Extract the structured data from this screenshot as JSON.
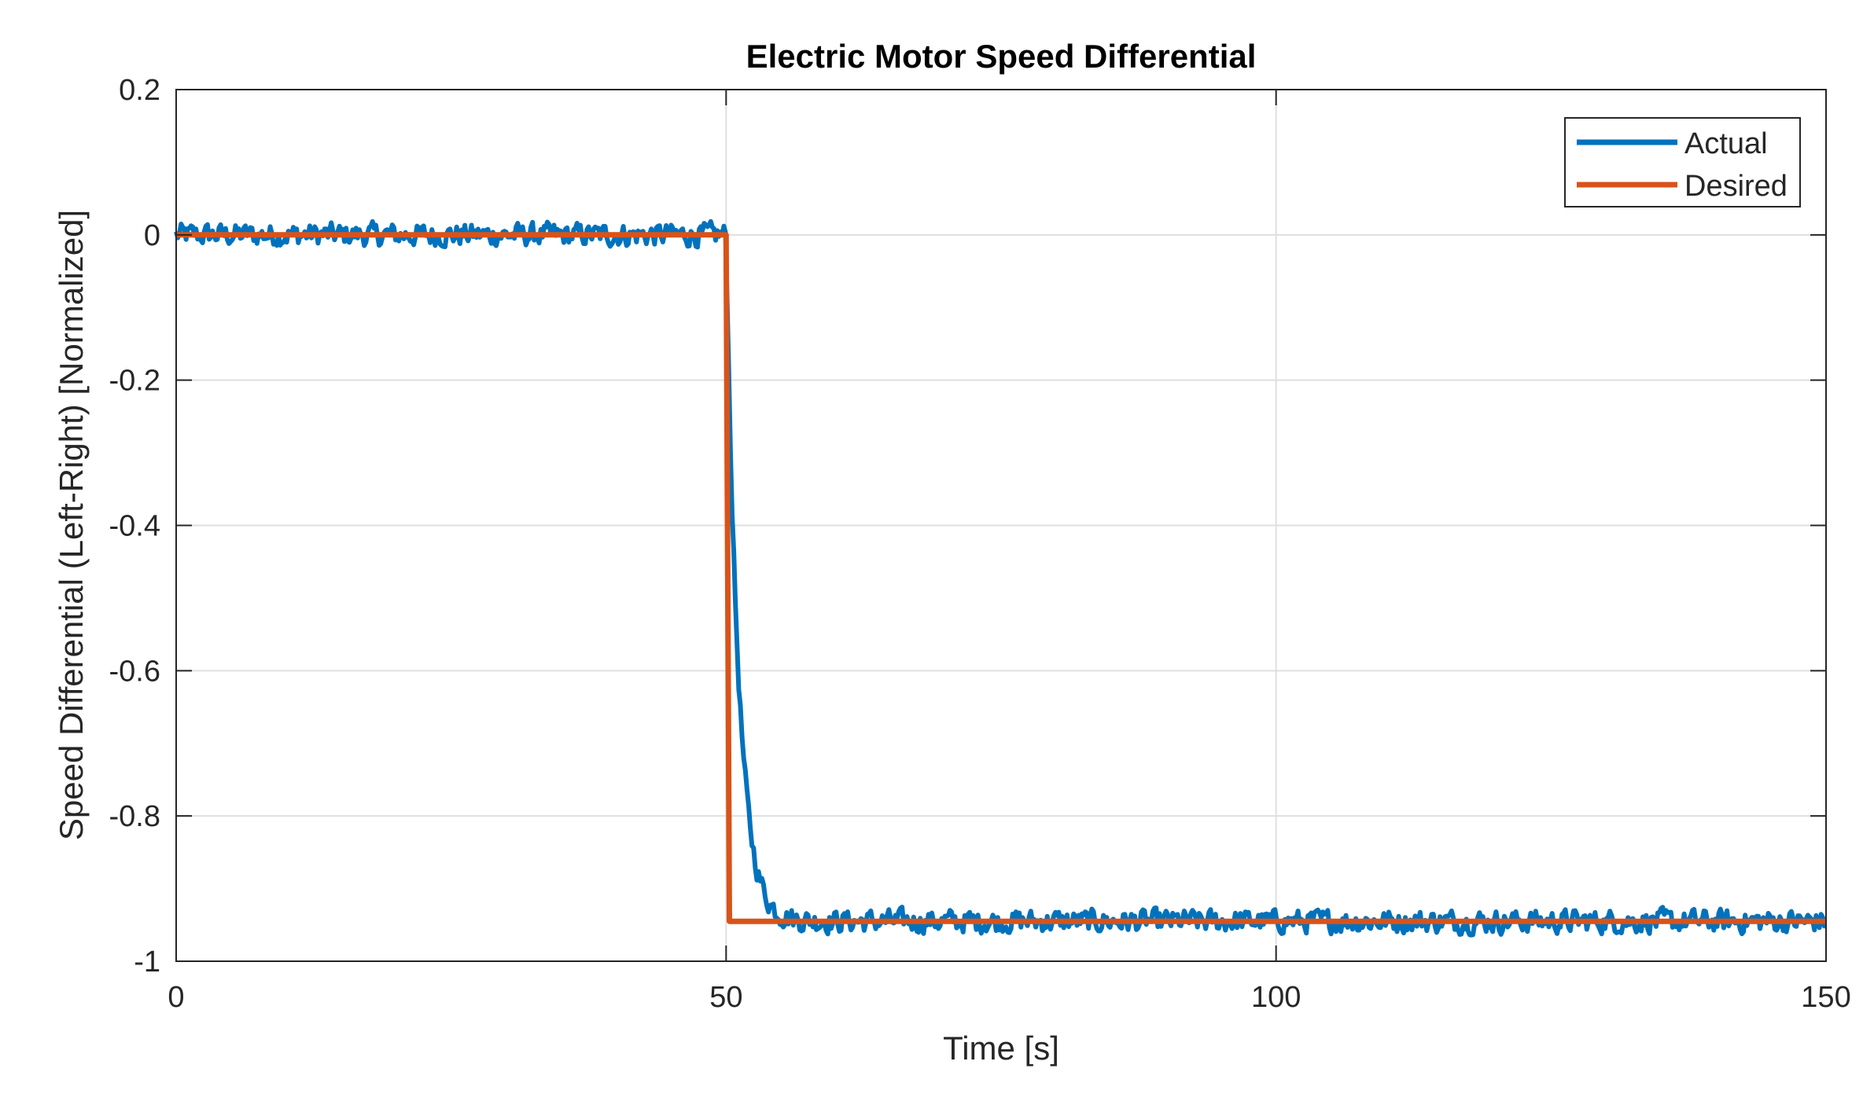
{
  "chart_data": {
    "type": "line",
    "title": "Electric Motor Speed Differential",
    "xlabel": "Time [s]",
    "ylabel": "Speed Differential (Left-Right) [Normalized]",
    "xlim": [
      0,
      150
    ],
    "ylim": [
      -1,
      0.2
    ],
    "xticks": [
      0,
      50,
      100,
      150
    ],
    "xtick_labels": [
      "0",
      "50",
      "100",
      "150"
    ],
    "yticks": [
      0.2,
      0,
      -0.2,
      -0.4,
      -0.6,
      -0.8,
      -1
    ],
    "ytick_labels": [
      "0.2",
      "0",
      "-0.2",
      "-0.4",
      "-0.6",
      "-0.8",
      "-1"
    ],
    "grid": true,
    "legend_position": "top-right",
    "series": [
      {
        "name": "Actual",
        "color": "#0072BD",
        "model": "noisy-first-order-response",
        "initial": 0,
        "final": -0.945,
        "step_time": 50,
        "time_constant": 1.1,
        "noise_amplitude": 0.022,
        "sample_step": 0.15
      },
      {
        "name": "Desired",
        "color": "#D95319",
        "x": [
          0,
          50,
          50.3,
          150
        ],
        "y": [
          0,
          0,
          -0.945,
          -0.945
        ]
      }
    ]
  }
}
